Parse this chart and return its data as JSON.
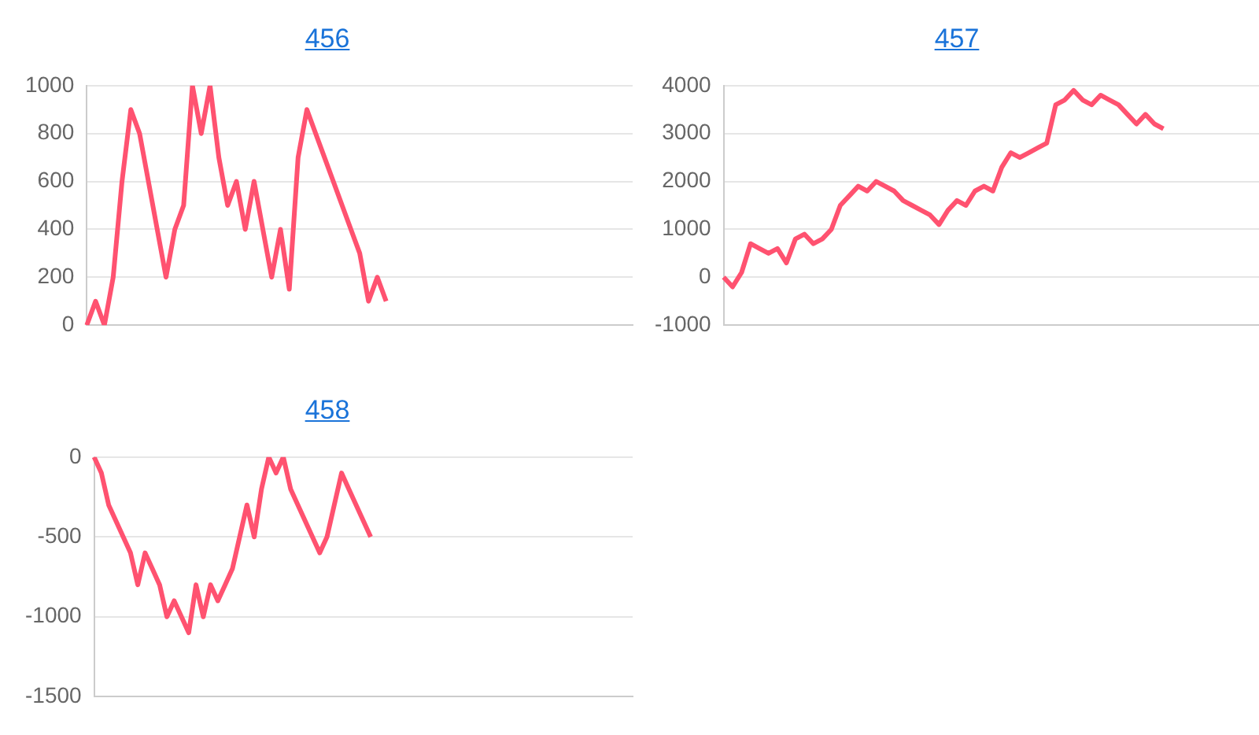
{
  "chart_data": [
    {
      "type": "line",
      "title": "456",
      "categories": [
        null,
        null,
        null,
        null,
        null,
        null,
        null,
        null,
        null,
        null,
        null,
        null,
        null,
        null,
        null,
        null,
        null,
        null,
        null,
        null,
        null,
        null,
        null,
        null,
        null,
        null,
        null,
        null,
        null,
        null,
        null,
        null,
        null,
        null,
        null,
        null,
        null,
        null,
        null,
        null,
        null,
        null,
        null,
        null,
        null,
        null,
        null,
        null,
        null,
        null,
        null,
        null,
        null,
        null,
        null,
        null,
        null,
        null,
        null,
        null,
        null,
        null,
        null
      ],
      "series": [
        {
          "color": "#ff5270",
          "values": [
            0,
            100,
            0,
            200,
            600,
            900,
            800,
            600,
            400,
            200,
            400,
            500,
            1000,
            800,
            1000,
            700,
            500,
            600,
            400,
            600,
            400,
            200,
            400,
            150,
            700,
            900,
            800,
            700,
            600,
            500,
            400,
            300,
            100,
            200,
            100,
            null,
            null,
            null,
            null,
            null,
            null,
            null,
            null,
            null,
            null,
            null,
            null,
            null,
            null,
            null,
            null,
            null,
            null,
            null,
            null,
            null,
            null,
            null,
            null,
            null,
            null,
            null,
            null
          ]
        }
      ],
      "ylim": [
        0,
        1000
      ],
      "yticks": [
        0,
        200,
        400,
        600,
        800,
        1000
      ],
      "grid": "y",
      "tick_labels": "y",
      "marker": "none",
      "legend": false
    },
    {
      "type": "line",
      "title": "457",
      "categories": [
        null,
        null,
        null,
        null,
        null,
        null,
        null,
        null,
        null,
        null,
        null,
        null,
        null,
        null,
        null,
        null,
        null,
        null,
        null,
        null,
        null,
        null,
        null,
        null,
        null,
        null,
        null,
        null,
        null,
        null,
        null,
        null,
        null,
        null,
        null,
        null,
        null,
        null,
        null,
        null,
        null,
        null,
        null,
        null,
        null,
        null,
        null,
        null,
        null,
        null,
        null,
        null,
        null,
        null,
        null,
        null,
        null,
        null,
        null,
        null,
        null
      ],
      "series": [
        {
          "color": "#ff5270",
          "values": [
            0,
            -200,
            100,
            700,
            600,
            500,
            600,
            300,
            800,
            900,
            700,
            800,
            1000,
            1500,
            1700,
            1900,
            1800,
            2000,
            1900,
            1800,
            1600,
            1500,
            1400,
            1300,
            1100,
            1400,
            1600,
            1500,
            1800,
            1900,
            1800,
            2300,
            2600,
            2500,
            2600,
            2700,
            2800,
            3600,
            3700,
            3900,
            3700,
            3600,
            3800,
            3700,
            3600,
            3400,
            3200,
            3400,
            3200,
            3100,
            null,
            null,
            null,
            null,
            null,
            null,
            null,
            null,
            null,
            null,
            null
          ]
        }
      ],
      "ylim": [
        -1000,
        4000
      ],
      "yticks": [
        -1000,
        0,
        1000,
        2000,
        3000,
        4000
      ],
      "grid": "y",
      "tick_labels": "y",
      "marker": "none",
      "legend": false
    },
    {
      "type": "line",
      "title": "458",
      "categories": [
        null,
        null,
        null,
        null,
        null,
        null,
        null,
        null,
        null,
        null,
        null,
        null,
        null,
        null,
        null,
        null,
        null,
        null,
        null,
        null,
        null,
        null,
        null,
        null,
        null,
        null,
        null,
        null,
        null,
        null,
        null,
        null,
        null,
        null,
        null,
        null,
        null,
        null,
        null,
        null,
        null,
        null,
        null,
        null,
        null,
        null,
        null,
        null,
        null,
        null,
        null,
        null,
        null,
        null,
        null,
        null,
        null,
        null,
        null,
        null,
        null,
        null,
        null,
        null,
        null,
        null,
        null,
        null,
        null,
        null,
        null,
        null,
        null,
        null,
        null
      ],
      "series": [
        {
          "color": "#ff5270",
          "values": [
            0,
            -100,
            -300,
            -400,
            -500,
            -600,
            -800,
            -600,
            -700,
            -800,
            -1000,
            -900,
            -1000,
            -1100,
            -800,
            -1000,
            -800,
            -900,
            -800,
            -700,
            -500,
            -300,
            -500,
            -200,
            0,
            -100,
            0,
            -200,
            -300,
            -400,
            -500,
            -600,
            -500,
            -300,
            -100,
            -200,
            -300,
            -400,
            -500,
            null,
            null,
            null,
            null,
            null,
            null,
            null,
            null,
            null,
            null,
            null,
            null,
            null,
            null,
            null,
            null,
            null,
            null,
            null,
            null,
            null,
            null,
            null,
            null,
            null,
            null,
            null,
            null,
            null,
            null,
            null,
            null,
            null,
            null,
            null,
            null
          ]
        }
      ],
      "ylim": [
        -1500,
        0
      ],
      "yticks": [
        -1500,
        -1000,
        -500,
        0
      ],
      "grid": "y",
      "tick_labels": "y",
      "marker": "none",
      "legend": false
    }
  ]
}
